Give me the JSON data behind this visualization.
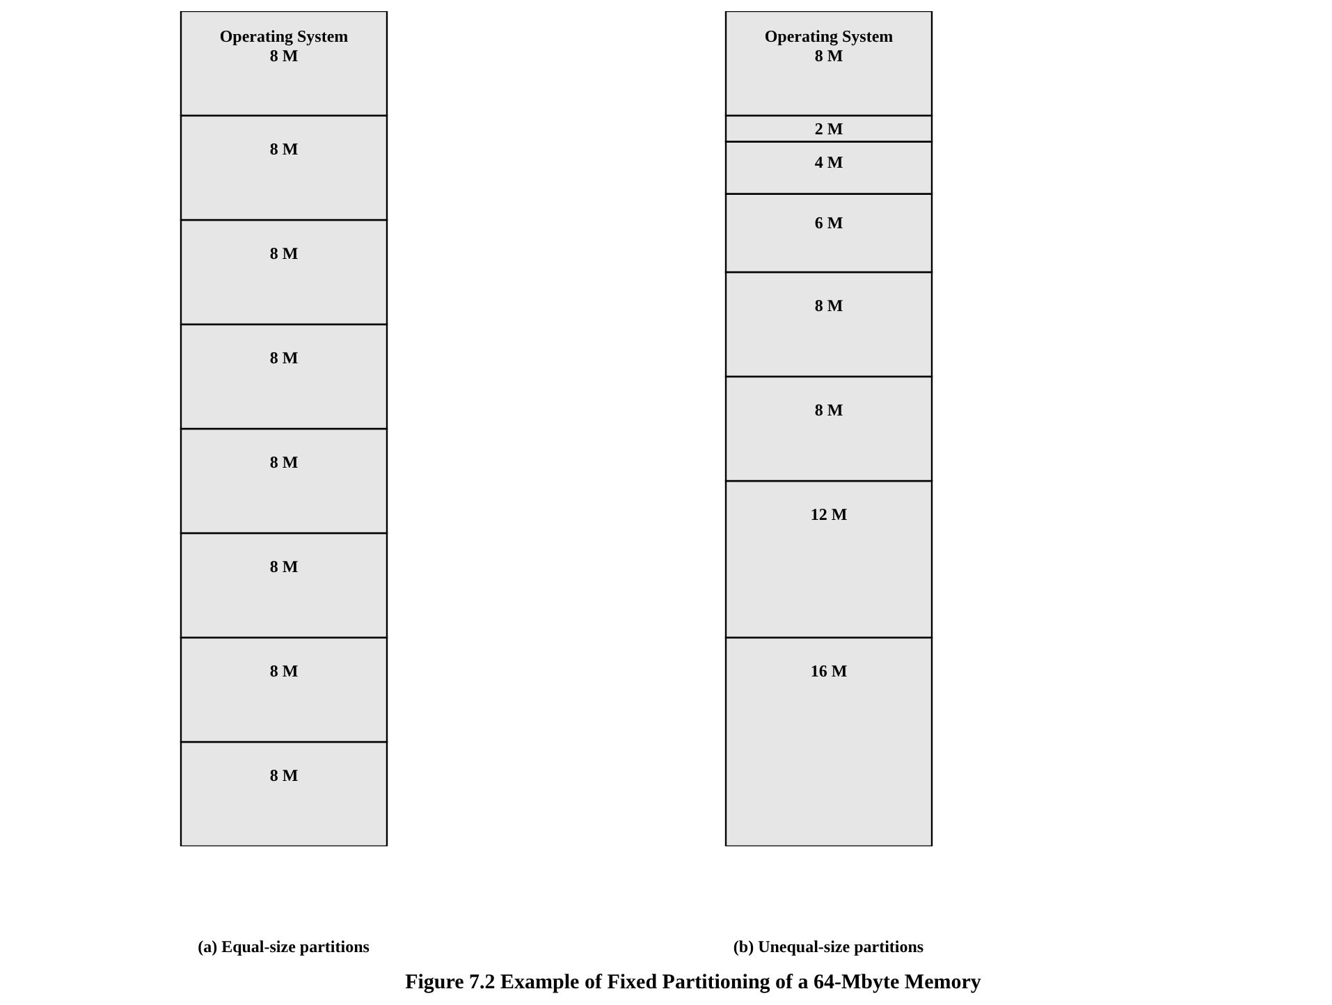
{
  "chart_data": {
    "type": "bar",
    "title": "Figure 7.2  Example of Fixed Partitioning of a 64-Mbyte Memory",
    "categories": [
      "(a) Equal-size partitions",
      "(b) Unequal-size partitions"
    ],
    "stacked": true,
    "ylim": [
      0,
      64
    ],
    "tick_labels": "x",
    "series": [
      {
        "color": "#e6e6e6",
        "values": [
          8,
          16
        ],
        "value_labels": [
          "8 M",
          "16 M"
        ]
      },
      {
        "color": "#e6e6e6",
        "values": [
          8,
          12
        ],
        "value_labels": [
          "8 M",
          "12 M"
        ]
      },
      {
        "color": "#e6e6e6",
        "values": [
          8,
          8
        ],
        "value_labels": [
          "8 M",
          "8 M"
        ]
      },
      {
        "color": "#e6e6e6",
        "values": [
          8,
          8
        ],
        "value_labels": [
          "8 M",
          "8 M"
        ]
      },
      {
        "color": "#e6e6e6",
        "values": [
          8,
          6
        ],
        "value_labels": [
          "8 M",
          "6 M"
        ]
      },
      {
        "color": "#e6e6e6",
        "values": [
          8,
          4
        ],
        "value_labels": [
          "8 M",
          "4 M"
        ]
      },
      {
        "color": "#e6e6e6",
        "values": [
          8,
          2
        ],
        "value_labels": [
          "8 M",
          "2 M"
        ]
      },
      {
        "color": "#e6e6e6",
        "values": [
          8,
          8
        ],
        "value_labels": [
          "Operating System\n8 M",
          "Operating System\n8 M"
        ]
      }
    ]
  }
}
